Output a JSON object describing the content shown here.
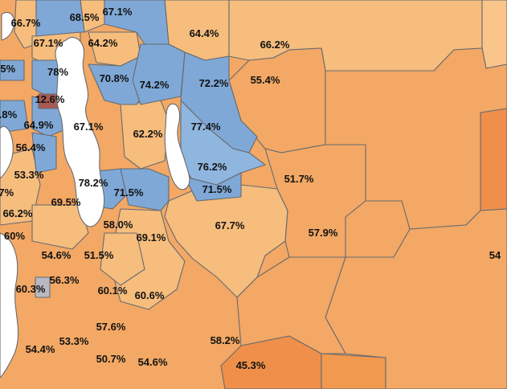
{
  "colors": {
    "light_orange": "#f6bd7d",
    "mid_orange": "#f3a865",
    "dark_orange": "#ef8f4a",
    "light_blue": "#7fa8d6",
    "mid_blue": "#8fb6de",
    "dark_red": "#a95a52",
    "grey": "#b9b9c3",
    "water": "#ffffff",
    "border": "#666a70"
  },
  "labels": [
    "66.7%",
    "68.5%",
    "67.1%",
    "67.1%",
    "64.2%",
    "64.4%",
    "66.2%",
    ".5%",
    "78%",
    "70.8%",
    "74.2%",
    "72.2%",
    "55.4%",
    "12.6%",
    ".8%",
    "64.9%",
    "67.1%",
    "62.2%",
    "77.4%",
    "56.4%",
    "76.2%",
    "51.7%",
    "53.3%",
    "78.2%",
    "71.5%",
    "71.5%",
    ".7%",
    "69.5%",
    "66.2%",
    "58.0%",
    "67.7%",
    "57.9%",
    "60%",
    "69.1%",
    "54.6%",
    "51.5%",
    "56.3%",
    "60.3%",
    "60.1%",
    "60.6%",
    "57.6%",
    "53.3%",
    "54.4%",
    "58.2%",
    "50.7%",
    "54.6%",
    "45.3%",
    "54"
  ]
}
